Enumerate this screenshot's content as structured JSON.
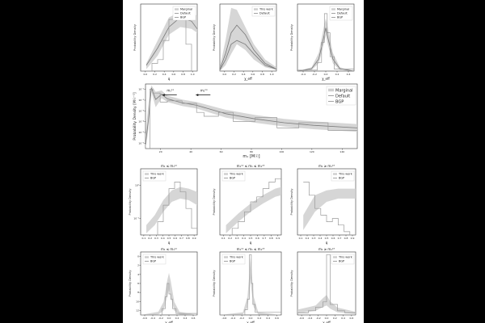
{
  "figure": {
    "background": "#ffffff",
    "band_color": "#cfcfcf",
    "line_color": "#7a7a7a",
    "step_color": "#9a9a9a"
  },
  "chart_data": [
    {
      "id": "top-left",
      "type": "line",
      "xlabel": "q",
      "ylabel": "Probability Density",
      "title": "",
      "xlim": [
        0,
        1
      ],
      "ylim": [
        0,
        3.5
      ],
      "xticks": [
        "0.0",
        "0.2",
        "0.4",
        "0.6",
        "0.8",
        "1.0"
      ],
      "legend": {
        "position": "top-right",
        "entries": [
          "Marginal",
          "Default",
          "BGP"
        ]
      },
      "series": [
        {
          "name": "Marginal",
          "kind": "band",
          "x": [
            0.1,
            0.3,
            0.5,
            0.7,
            0.9,
            1.0
          ],
          "lower": [
            0.1,
            0.8,
            1.9,
            2.3,
            2.2,
            2.0
          ],
          "upper": [
            0.4,
            1.6,
            2.8,
            3.1,
            3.0,
            2.9
          ]
        },
        {
          "name": "Default",
          "kind": "line",
          "x": [
            0.1,
            0.3,
            0.5,
            0.7,
            0.9,
            1.0
          ],
          "y": [
            0.3,
            1.2,
            2.3,
            2.8,
            2.6,
            2.2
          ]
        },
        {
          "name": "BGP",
          "kind": "step",
          "x": [
            0.0,
            0.2,
            0.3,
            0.4,
            0.5,
            0.6,
            0.7,
            0.8,
            0.9,
            1.0
          ],
          "y": [
            0.0,
            0.4,
            0.6,
            1.6,
            2.7,
            3.1,
            2.7,
            1.4,
            0.0,
            0.0
          ]
        }
      ]
    },
    {
      "id": "top-middle",
      "type": "line",
      "xlabel": "χ_eff",
      "ylabel": "Probability Density",
      "title": "",
      "xlim": [
        0.0,
        1.0
      ],
      "ylim": [
        0,
        3.5
      ],
      "xticks": [
        "0.0",
        "0.2",
        "0.4",
        "0.6",
        "0.8",
        "1.0"
      ],
      "legend": {
        "position": "top-right",
        "entries": [
          "This work",
          "Default"
        ]
      },
      "series": [
        {
          "name": "This work",
          "kind": "band",
          "x": [
            0.0,
            0.1,
            0.2,
            0.3,
            0.45,
            0.6,
            0.8,
            1.0
          ],
          "lower": [
            0.0,
            0.3,
            0.9,
            1.4,
            1.1,
            0.6,
            0.2,
            0.05
          ],
          "upper": [
            0.2,
            1.6,
            3.3,
            3.2,
            2.3,
            1.4,
            0.6,
            0.2
          ]
        },
        {
          "name": "This work",
          "kind": "line",
          "x": [
            0.0,
            0.1,
            0.2,
            0.3,
            0.45,
            0.6,
            0.8,
            1.0
          ],
          "y": [
            0.1,
            0.9,
            2.0,
            2.4,
            1.9,
            1.1,
            0.4,
            0.1
          ]
        },
        {
          "name": "Default",
          "kind": "line",
          "x": [
            0.0,
            0.1,
            0.2,
            0.3,
            0.45,
            0.6,
            0.8,
            1.0
          ],
          "y": [
            0.05,
            0.6,
            1.4,
            1.6,
            1.4,
            0.9,
            0.3,
            0.1
          ]
        }
      ]
    },
    {
      "id": "top-right",
      "type": "line",
      "xlabel": "χ_eff",
      "ylabel": "Probability Density",
      "title": "",
      "xlim": [
        -0.4,
        0.4
      ],
      "ylim": [
        0,
        14
      ],
      "xticks": [
        "-0.4",
        "-0.2",
        "0.0",
        "0.2",
        "0.4"
      ],
      "legend": {
        "position": "top-right",
        "entries": [
          "Marginal",
          "Default",
          "BGP"
        ]
      },
      "series": [
        {
          "name": "Marginal",
          "kind": "band",
          "x": [
            -0.4,
            -0.2,
            -0.1,
            -0.03,
            0.0,
            0.03,
            0.1,
            0.2,
            0.4
          ],
          "lower": [
            0,
            0.2,
            1.6,
            5.5,
            7.5,
            5.5,
            1.6,
            0.2,
            0
          ],
          "upper": [
            0,
            0.8,
            3.8,
            9,
            11,
            9,
            3.8,
            0.8,
            0
          ]
        },
        {
          "name": "Default",
          "kind": "line",
          "x": [
            -0.4,
            -0.2,
            -0.1,
            -0.03,
            0.0,
            0.03,
            0.1,
            0.2,
            0.4
          ],
          "y": [
            0,
            0.5,
            2.5,
            7,
            9,
            7,
            2.5,
            0.5,
            0
          ]
        },
        {
          "name": "BGP",
          "kind": "step",
          "x": [
            -0.4,
            -0.12,
            -0.06,
            -0.02,
            0.02,
            0.06,
            0.12,
            0.4
          ],
          "y": [
            0.2,
            1.8,
            6,
            12,
            8,
            3,
            0.4,
            0.4
          ]
        }
      ]
    },
    {
      "id": "middle-wide",
      "type": "line",
      "xlabel": "m₁ [M☉]",
      "ylabel": "Probability Density [M☉⁻¹]",
      "title": "",
      "xlim": [
        5,
        150
      ],
      "ylim": [
        -6,
        -1
      ],
      "yscale": "log",
      "xticks": [
        "20",
        "40",
        "60",
        "80",
        "100",
        "120",
        "140"
      ],
      "yticks": [
        "10⁻¹",
        "10⁻²",
        "10⁻³",
        "10⁻⁴",
        "10⁻⁵",
        "10⁻⁶"
      ],
      "annotations": [
        {
          "text": "m₁¹²",
          "x": 22,
          "y": -1.6
        },
        {
          "text": "m₁²³",
          "x": 45,
          "y": -1.6
        }
      ],
      "legend": {
        "position": "top-right",
        "entries": [
          "Marginal",
          "Default",
          "BGP"
        ]
      },
      "series": [
        {
          "name": "Marginal",
          "kind": "band",
          "x": [
            5,
            7,
            9,
            12,
            16,
            20,
            30,
            40,
            60,
            80,
            100,
            120,
            150
          ],
          "lower": [
            -6,
            -4.5,
            -1.6,
            -2.8,
            -2.1,
            -2.4,
            -2.7,
            -2.9,
            -3.6,
            -4.0,
            -4.3,
            -4.5,
            -4.7
          ],
          "upper": [
            -5,
            -2.5,
            -1.1,
            -1.6,
            -1.5,
            -1.9,
            -2.2,
            -2.4,
            -3.0,
            -3.4,
            -3.7,
            -3.9,
            -4.1
          ]
        },
        {
          "name": "Default",
          "kind": "line",
          "x": [
            5,
            7,
            9,
            12,
            16,
            20,
            30,
            40,
            60,
            80,
            100,
            120,
            150
          ],
          "y": [
            -5.7,
            -3.8,
            -1.3,
            -2.2,
            -1.8,
            -2.15,
            -2.45,
            -2.65,
            -3.3,
            -3.7,
            -4.0,
            -4.2,
            -4.4
          ]
        },
        {
          "name": "BGP",
          "kind": "step",
          "x": [
            5,
            8,
            10,
            15,
            20,
            30,
            40,
            45,
            55,
            65,
            80,
            95,
            110,
            130,
            150
          ],
          "y": [
            -6,
            -1.4,
            -1.7,
            -2.4,
            -2.3,
            -2.5,
            -3.2,
            -3.5,
            -3.2,
            -3.9,
            -3.6,
            -4.4,
            -4.0,
            -4.6,
            -4.6
          ]
        }
      ]
    },
    {
      "id": "row3-left",
      "type": "line",
      "title": "m₁ ≤ m₁¹²",
      "xlabel": "q",
      "ylabel": "Probability Density",
      "xlim": [
        0,
        1
      ],
      "ylim": [
        -1,
        1
      ],
      "yscale": "log",
      "xticks": [
        "0.1",
        "0.2",
        "0.3",
        "0.4",
        "0.5",
        "0.6",
        "0.7",
        "0.8",
        "0.9"
      ],
      "yticks": [
        "10⁰",
        "10⁻¹"
      ],
      "legend": {
        "position": "top-left",
        "entries": [
          "This work",
          "BGP"
        ]
      },
      "series": [
        {
          "name": "This work",
          "kind": "band",
          "x": [
            0.1,
            0.25,
            0.4,
            0.55,
            0.7,
            0.85,
            1.0
          ],
          "lower": [
            -0.95,
            -0.7,
            -0.3,
            0.0,
            0.1,
            0.05,
            -0.1
          ],
          "upper": [
            -0.7,
            -0.4,
            0.05,
            0.35,
            0.45,
            0.4,
            0.3
          ]
        },
        {
          "name": "BGP",
          "kind": "step",
          "x": [
            0.1,
            0.3,
            0.4,
            0.5,
            0.6,
            0.7,
            0.8,
            0.9,
            1.0
          ],
          "y": [
            -1,
            -0.6,
            -0.1,
            0.4,
            0.6,
            0.3,
            -0.2,
            -0.8,
            -0.8
          ]
        }
      ]
    },
    {
      "id": "row3-middle",
      "type": "line",
      "title": "m₁¹² ≤ m₁ ≤ m₁²³",
      "xlabel": "q",
      "ylabel": "Probability Density",
      "xlim": [
        0,
        1
      ],
      "ylim": [
        -1,
        1
      ],
      "yscale": "log",
      "xticks": [
        "0.1",
        "0.2",
        "0.3",
        "0.4",
        "0.5",
        "0.6",
        "0.7",
        "0.8",
        "0.9"
      ],
      "legend": {
        "position": "top-left",
        "entries": [
          "This work",
          "BGP"
        ]
      },
      "series": [
        {
          "name": "This work",
          "kind": "band",
          "x": [
            0.1,
            0.3,
            0.5,
            0.7,
            0.9,
            1.0
          ],
          "lower": [
            -0.95,
            -0.6,
            -0.3,
            -0.05,
            0.15,
            0.2
          ],
          "upper": [
            -0.7,
            -0.35,
            -0.05,
            0.2,
            0.4,
            0.45
          ]
        },
        {
          "name": "BGP",
          "kind": "step",
          "x": [
            0.1,
            0.2,
            0.3,
            0.4,
            0.5,
            0.6,
            0.7,
            0.8,
            0.9,
            1.0
          ],
          "y": [
            -1,
            -0.8,
            -0.6,
            -0.3,
            0.0,
            0.15,
            0.4,
            0.6,
            0.7,
            0.7
          ]
        }
      ]
    },
    {
      "id": "row3-right",
      "type": "line",
      "title": "m₁ ≥ m₁²³",
      "xlabel": "q",
      "ylabel": "Probability Density",
      "xlim": [
        0,
        1
      ],
      "ylim": [
        -1,
        1
      ],
      "yscale": "log",
      "xticks": [
        "0.1",
        "0.2",
        "0.3",
        "0.4",
        "0.5",
        "0.6",
        "0.7",
        "0.8",
        "0.9"
      ],
      "legend": {
        "position": "top-right",
        "entries": [
          "This work",
          "BGP"
        ]
      },
      "series": [
        {
          "name": "This work",
          "kind": "band",
          "x": [
            0.1,
            0.3,
            0.5,
            0.7,
            0.9,
            1.0
          ],
          "lower": [
            -0.85,
            -0.3,
            0.0,
            0.1,
            0.1,
            0.1
          ],
          "upper": [
            -0.4,
            0.2,
            0.35,
            0.4,
            0.4,
            0.4
          ]
        },
        {
          "name": "BGP",
          "kind": "step",
          "x": [
            0.1,
            0.2,
            0.3,
            0.4,
            0.5,
            0.6,
            0.7,
            0.8,
            0.9,
            1.0
          ],
          "y": [
            0.6,
            0.2,
            -0.2,
            -0.4,
            -0.6,
            -0.5,
            -0.7,
            -0.9,
            -1.0,
            -1.0
          ]
        }
      ]
    },
    {
      "id": "row4-left",
      "type": "line",
      "title": "m₁ ≤ m₁¹²",
      "xlabel": "χ_eff",
      "ylabel": "Probability Density",
      "xlim": [
        -0.8,
        0.8
      ],
      "ylim": [
        0,
        12
      ],
      "xticks": [
        "-0.6",
        "-0.4",
        "-0.2",
        "0.0",
        "0.2",
        "0.4",
        "0.6"
      ],
      "yticks": [
        "0",
        "2",
        "4",
        "6",
        "8",
        "10",
        "12"
      ],
      "legend": {
        "position": "top-left",
        "entries": [
          "This work",
          "BGP"
        ]
      },
      "series": [
        {
          "name": "This work",
          "kind": "band",
          "x": [
            -0.8,
            -0.3,
            -0.15,
            -0.05,
            0.0,
            0.05,
            0.15,
            0.3,
            0.8
          ],
          "lower": [
            0,
            0.1,
            0.8,
            3.5,
            5,
            3.5,
            0.8,
            0.1,
            0
          ],
          "upper": [
            0,
            0.6,
            2.5,
            6.5,
            8,
            6.5,
            2.5,
            0.6,
            0
          ]
        },
        {
          "name": "BGP",
          "kind": "step",
          "x": [
            -0.8,
            -0.2,
            -0.1,
            -0.05,
            0.0,
            0.05,
            0.1,
            0.2,
            0.8
          ],
          "y": [
            0,
            1.2,
            3.5,
            6,
            4,
            3,
            1.2,
            0.3,
            0.3
          ]
        }
      ]
    },
    {
      "id": "row4-middle",
      "type": "line",
      "title": "m₁¹² ≤ m₁ ≤ m₁²³",
      "xlabel": "χ_eff",
      "ylabel": "Probability Density",
      "xlim": [
        -0.8,
        0.8
      ],
      "ylim": [
        0,
        12
      ],
      "xticks": [
        "-0.6",
        "-0.4",
        "-0.2",
        "0.0",
        "0.2",
        "0.4",
        "0.6"
      ],
      "legend": {
        "position": "top-left",
        "entries": [
          "This work",
          "BGP"
        ]
      },
      "series": [
        {
          "name": "This work",
          "kind": "band",
          "x": [
            -0.8,
            -0.2,
            -0.08,
            -0.02,
            0.0,
            0.02,
            0.08,
            0.2,
            0.8
          ],
          "lower": [
            0,
            0.1,
            1.5,
            5,
            7,
            5,
            1.5,
            0.1,
            0
          ],
          "upper": [
            0,
            0.5,
            3.5,
            9,
            11,
            9,
            3.5,
            0.5,
            0
          ]
        },
        {
          "name": "BGP",
          "kind": "step",
          "x": [
            -0.8,
            -0.15,
            -0.08,
            -0.03,
            0.02,
            0.06,
            0.12,
            0.8
          ],
          "y": [
            0,
            1,
            3,
            11.5,
            6,
            2,
            0.5,
            0.5
          ]
        }
      ]
    },
    {
      "id": "row4-right",
      "type": "line",
      "title": "m₁ ≥ m₁²³",
      "xlabel": "χ_eff",
      "ylabel": "Probability Density",
      "xlim": [
        -0.8,
        0.8
      ],
      "ylim": [
        0,
        12
      ],
      "xticks": [
        "-0.6",
        "-0.4",
        "-0.2",
        "0.0",
        "0.2",
        "0.4",
        "0.6"
      ],
      "legend": {
        "position": "top-right",
        "entries": [
          "This work",
          "BGP"
        ]
      },
      "series": [
        {
          "name": "This work",
          "kind": "band",
          "x": [
            -0.8,
            -0.3,
            -0.1,
            0.0,
            0.1,
            0.3,
            0.8
          ],
          "lower": [
            0.3,
            0.8,
            1.5,
            1.8,
            1.2,
            0.5,
            0.2
          ],
          "upper": [
            1.0,
            1.8,
            3.2,
            3.8,
            2.6,
            1.4,
            0.6
          ]
        },
        {
          "name": "BGP",
          "kind": "step",
          "x": [
            -0.8,
            -0.5,
            -0.3,
            -0.1,
            0.0,
            0.1,
            0.3,
            0.5,
            0.8
          ],
          "y": [
            0.4,
            0.8,
            1.5,
            2.5,
            11.5,
            2,
            0.8,
            0.4,
            0.4
          ]
        }
      ]
    }
  ]
}
